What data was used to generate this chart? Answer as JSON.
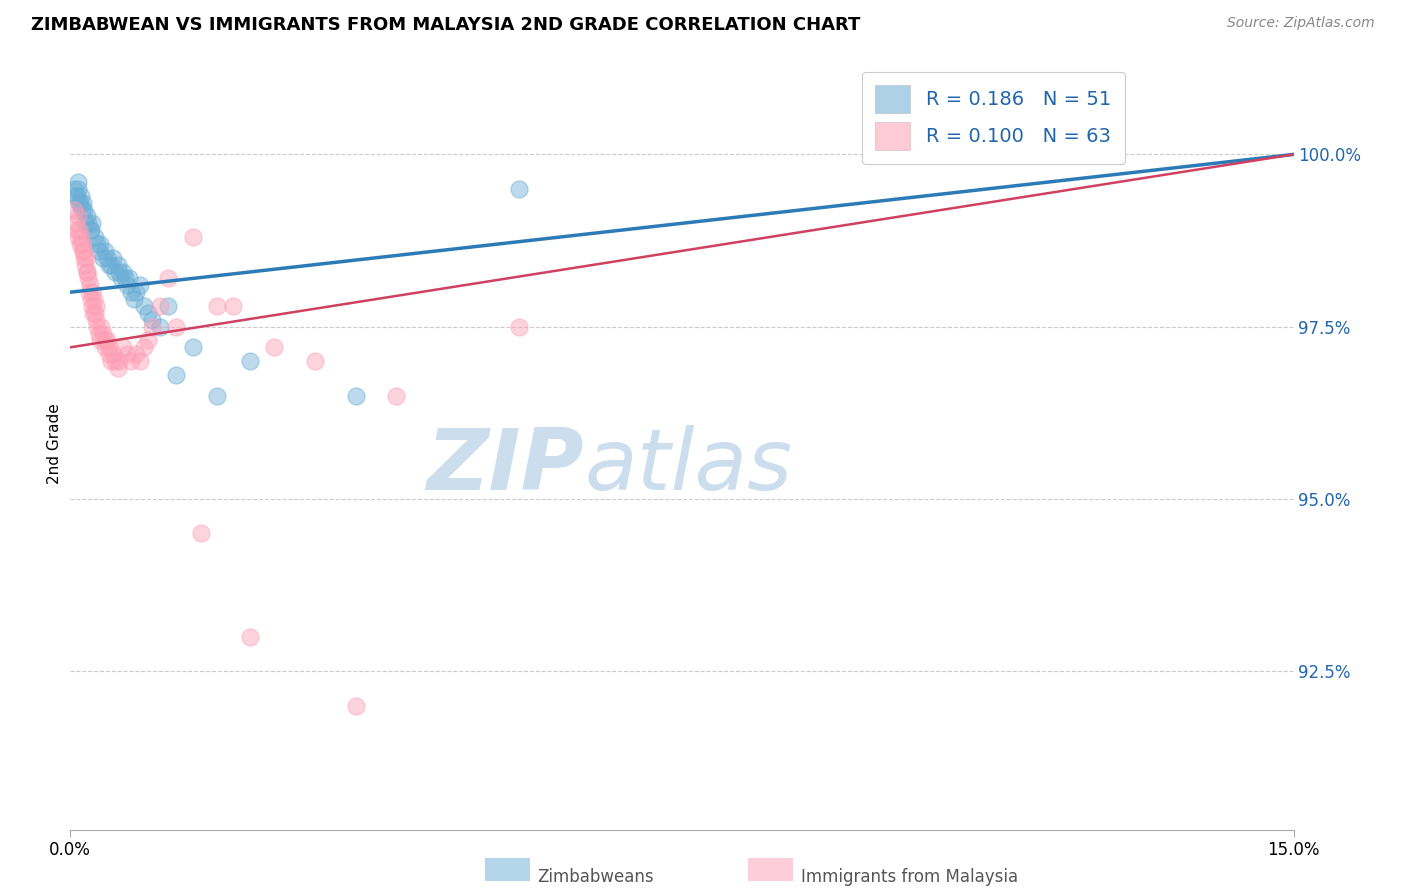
{
  "title": "ZIMBABWEAN VS IMMIGRANTS FROM MALAYSIA 2ND GRADE CORRELATION CHART",
  "source": "Source: ZipAtlas.com",
  "ylabel": "2nd Grade",
  "xlim": [
    0.0,
    15.0
  ],
  "ylim": [
    90.2,
    101.4
  ],
  "yticks": [
    92.5,
    95.0,
    97.5,
    100.0
  ],
  "ytick_labels": [
    "92.5%",
    "95.0%",
    "97.5%",
    "100.0%"
  ],
  "xtick_positions": [
    0.0,
    15.0
  ],
  "xtick_labels": [
    "0.0%",
    "15.0%"
  ],
  "r_blue": "0.186",
  "n_blue": "51",
  "r_pink": "0.100",
  "n_pink": "63",
  "blue_color": "#6baed6",
  "pink_color": "#fc9fb5",
  "trend_blue_color": "#2c7bb6",
  "trend_pink_color": "#d04060",
  "watermark_zip": "ZIP",
  "watermark_atlas": "atlas",
  "watermark_color": "#ccdeed",
  "blue_x": [
    0.05,
    0.07,
    0.09,
    0.1,
    0.12,
    0.13,
    0.15,
    0.17,
    0.2,
    0.22,
    0.25,
    0.27,
    0.3,
    0.33,
    0.35,
    0.37,
    0.4,
    0.43,
    0.45,
    0.47,
    0.5,
    0.52,
    0.55,
    0.58,
    0.6,
    0.62,
    0.65,
    0.67,
    0.7,
    0.72,
    0.75,
    0.78,
    0.8,
    0.85,
    0.9,
    0.95,
    1.0,
    1.1,
    1.2,
    1.3,
    1.5,
    1.8,
    2.2,
    3.5,
    5.5,
    0.08,
    0.11,
    0.14,
    0.18,
    0.24,
    12.5
  ],
  "blue_y": [
    99.5,
    99.4,
    99.6,
    99.5,
    99.3,
    99.4,
    99.3,
    99.2,
    99.1,
    99.0,
    98.9,
    99.0,
    98.8,
    98.7,
    98.6,
    98.7,
    98.5,
    98.6,
    98.5,
    98.4,
    98.4,
    98.5,
    98.3,
    98.4,
    98.3,
    98.2,
    98.3,
    98.2,
    98.1,
    98.2,
    98.0,
    97.9,
    98.0,
    98.1,
    97.8,
    97.7,
    97.6,
    97.5,
    97.8,
    96.8,
    97.2,
    96.5,
    97.0,
    96.5,
    99.5,
    99.4,
    99.3,
    99.2,
    99.0,
    98.9,
    100.0
  ],
  "pink_x": [
    0.05,
    0.07,
    0.08,
    0.09,
    0.1,
    0.12,
    0.13,
    0.15,
    0.17,
    0.18,
    0.2,
    0.22,
    0.23,
    0.25,
    0.27,
    0.28,
    0.3,
    0.32,
    0.33,
    0.35,
    0.37,
    0.38,
    0.4,
    0.42,
    0.43,
    0.45,
    0.47,
    0.48,
    0.5,
    0.52,
    0.55,
    0.58,
    0.6,
    0.65,
    0.7,
    0.75,
    0.8,
    0.85,
    0.9,
    0.95,
    1.0,
    1.1,
    1.2,
    1.3,
    1.5,
    1.8,
    2.0,
    2.5,
    3.0,
    4.0,
    5.5,
    0.11,
    0.14,
    0.16,
    0.19,
    0.21,
    0.24,
    0.26,
    0.29,
    0.31,
    1.6,
    2.2,
    3.5
  ],
  "pink_y": [
    99.2,
    99.0,
    98.9,
    99.1,
    98.8,
    98.7,
    98.8,
    98.6,
    98.5,
    98.4,
    98.3,
    98.2,
    98.0,
    97.9,
    97.8,
    97.7,
    97.7,
    97.6,
    97.5,
    97.4,
    97.3,
    97.5,
    97.4,
    97.3,
    97.2,
    97.3,
    97.2,
    97.1,
    97.0,
    97.1,
    97.0,
    96.9,
    97.0,
    97.2,
    97.1,
    97.0,
    97.1,
    97.0,
    97.2,
    97.3,
    97.5,
    97.8,
    98.2,
    97.5,
    98.8,
    97.8,
    97.8,
    97.2,
    97.0,
    96.5,
    97.5,
    98.9,
    98.7,
    98.6,
    98.5,
    98.3,
    98.1,
    98.0,
    97.9,
    97.8,
    94.5,
    93.0,
    92.0
  ]
}
